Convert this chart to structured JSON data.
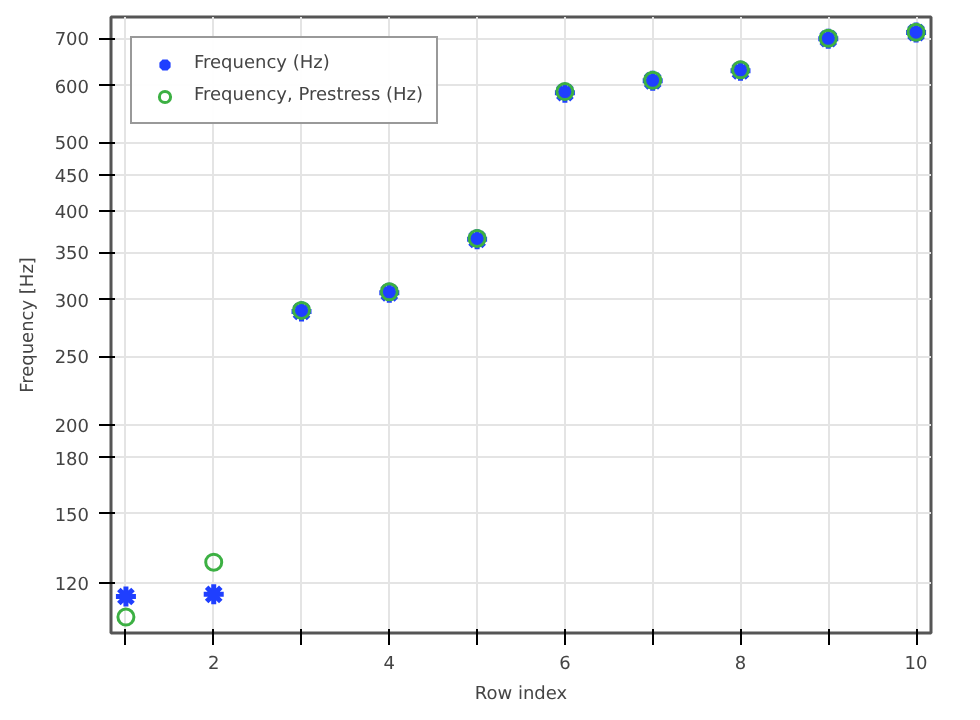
{
  "chart_data": {
    "type": "scatter",
    "xlabel": "Row index",
    "ylabel": "Frequency [Hz]",
    "log": "y",
    "x": [
      1,
      2,
      3,
      4,
      5,
      6,
      7,
      8,
      9,
      10
    ],
    "series": [
      {
        "name": "Frequency (Hz)",
        "color": "#1f3fff",
        "marker": "cross",
        "values": [
          114.8,
          115.6,
          289,
          307,
          365,
          587,
          610,
          630,
          699,
          713
        ]
      },
      {
        "name": "Frequency, Prestress (Hz)",
        "color": "#3cb043",
        "marker": "circle",
        "values": [
          107.4,
          128.3,
          290,
          308,
          366,
          589,
          611,
          632,
          700,
          714
        ]
      }
    ],
    "xlim": [
      0.83,
      10.17
    ],
    "ylim": [
      102,
      750
    ],
    "xticks": [
      {
        "value": 1,
        "label": null
      },
      2,
      {
        "value": 3,
        "label": null
      },
      4,
      {
        "value": 5,
        "label": null
      },
      6,
      {
        "value": 7,
        "label": null
      },
      8,
      {
        "value": 9,
        "label": null
      },
      10
    ],
    "yticks": [
      120,
      150,
      180,
      200,
      250,
      300,
      350,
      400,
      450,
      500,
      600,
      700
    ],
    "grid": true,
    "legend": "top left"
  }
}
